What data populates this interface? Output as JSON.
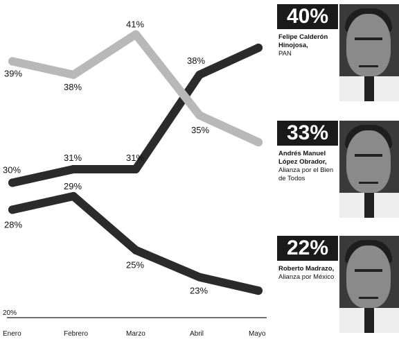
{
  "chart_data": {
    "type": "line",
    "categories": [
      "Enero",
      "Febrero",
      "Marzo",
      "Abril",
      "Mayo"
    ],
    "ylim": [
      20,
      42
    ],
    "y_baseline_label": "20%",
    "series": [
      {
        "values": [
          30,
          31,
          31,
          38,
          40
        ],
        "color": "#2b2b2b",
        "labels": [
          "30%",
          "31%",
          "31%",
          "38%",
          ""
        ]
      },
      {
        "values": [
          39,
          38,
          41,
          35,
          33
        ],
        "color": "#b8b8b8",
        "labels": [
          "39%",
          "38%",
          "41%",
          "35%",
          ""
        ]
      },
      {
        "values": [
          28,
          29,
          25,
          23,
          22
        ],
        "color": "#2b2b2b",
        "labels": [
          "28%",
          "29%",
          "25%",
          "23%",
          ""
        ]
      }
    ]
  },
  "candidates": [
    {
      "percent": "40%",
      "name": "Felipe Calderón Hinojosa,",
      "party": "PAN"
    },
    {
      "percent": "33%",
      "name": "Andrés Manuel López Obrador,",
      "party": "Alianza por el Bien de Todos"
    },
    {
      "percent": "22%",
      "name": "Roberto Madrazo,",
      "party": "Alianza por México"
    }
  ],
  "colors": {
    "dark": "#2b2b2b",
    "light": "#b8b8b8",
    "box": "#1a1a1a"
  }
}
